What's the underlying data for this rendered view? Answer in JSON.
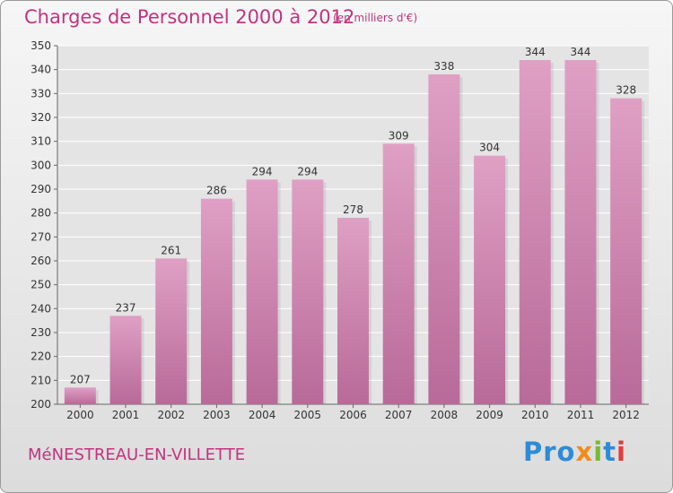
{
  "header": {
    "title": "Charges de Personnel 2000 à 2012",
    "unit": "(en milliers d'€)"
  },
  "footer": {
    "town": "MéNESTREAU-EN-VILLETTE",
    "logo_parts": [
      "Pro",
      "x",
      "i",
      "t",
      "i"
    ]
  },
  "colors": {
    "bar": "#d98cb6",
    "bar_dark": "#b86a98",
    "accent": "#c2337f",
    "grid": "#ffffff"
  },
  "chart_data": {
    "type": "bar",
    "title": "Charges de Personnel 2000 à 2012",
    "subtitle": "(en milliers d'€)",
    "xlabel": "",
    "ylabel": "",
    "categories": [
      "2000",
      "2001",
      "2002",
      "2003",
      "2004",
      "2005",
      "2006",
      "2007",
      "2008",
      "2009",
      "2010",
      "2011",
      "2012"
    ],
    "values": [
      207,
      237,
      261,
      286,
      294,
      294,
      278,
      309,
      338,
      304,
      344,
      344,
      328
    ],
    "ylim": [
      200,
      350
    ],
    "yticks": [
      200,
      210,
      220,
      230,
      240,
      250,
      260,
      270,
      280,
      290,
      300,
      310,
      320,
      330,
      340,
      350
    ],
    "grid": true,
    "legend": "none"
  }
}
